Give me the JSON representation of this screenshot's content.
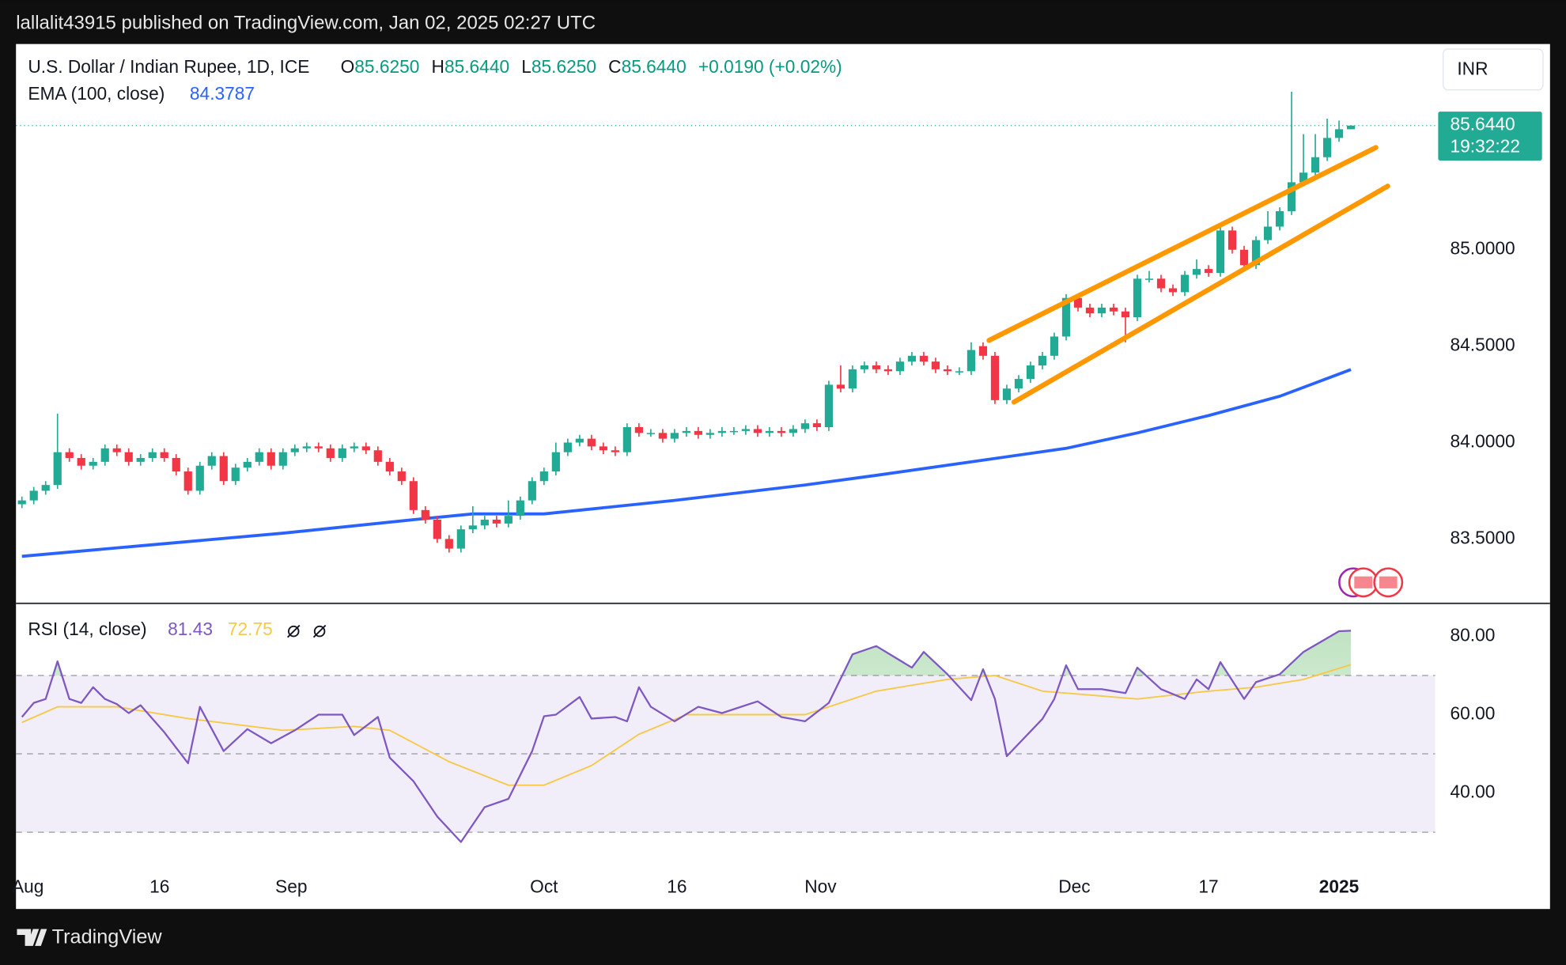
{
  "header": "lallalit43915 published on TradingView.com, Jan 02, 2025 02:27 UTC",
  "footer": "TradingView",
  "chart_data": [
    {
      "type": "candlestick",
      "title": "U.S. Dollar / Indian Rupee, 1D, ICE",
      "legend": [
        {
          "key": "O",
          "value": "85.6250"
        },
        {
          "key": "H",
          "value": "85.6440"
        },
        {
          "key": "L",
          "value": "85.6250"
        },
        {
          "key": "C",
          "value": "85.6440"
        }
      ],
      "change": "+0.0190 (+0.02%)",
      "currency": "INR",
      "up_color": "#22ab94",
      "down_color": "#f23645",
      "open": [
        83.68,
        83.7,
        83.75,
        83.78,
        83.95,
        83.92,
        83.88,
        83.9,
        83.97,
        83.95,
        83.9,
        83.92,
        83.95,
        83.92,
        83.85,
        83.75,
        83.88,
        83.93,
        83.8,
        83.87,
        83.9,
        83.95,
        83.88,
        83.95,
        83.97,
        83.98,
        83.97,
        83.92,
        83.97,
        83.98,
        83.96,
        83.9,
        83.85,
        83.8,
        83.65,
        83.6,
        83.5,
        83.45,
        83.55,
        83.57,
        83.6,
        83.58,
        83.62,
        83.7,
        83.8,
        83.85,
        83.95,
        84.0,
        84.02,
        83.98,
        83.96,
        83.95,
        84.08,
        84.05,
        84.05,
        84.02,
        84.05,
        84.06,
        84.04,
        84.05,
        84.06,
        84.06,
        84.07,
        84.05,
        84.06,
        84.05,
        84.07,
        84.1,
        84.08,
        84.3,
        84.28,
        84.38,
        84.4,
        84.38,
        84.37,
        84.42,
        84.45,
        84.42,
        84.38,
        84.37,
        84.37,
        84.5,
        84.45,
        84.22,
        84.28,
        84.33,
        84.4,
        84.45,
        84.55,
        84.75,
        84.7,
        84.67,
        84.7,
        84.68,
        84.65,
        84.85,
        84.85,
        84.8,
        84.78,
        84.87,
        84.9,
        84.88,
        85.1,
        85.0,
        84.92,
        85.05,
        85.12,
        85.2,
        85.35,
        85.4,
        85.48,
        85.58,
        85.625
      ],
      "high": [
        83.72,
        83.77,
        83.8,
        84.15,
        83.97,
        83.94,
        83.92,
        83.99,
        83.99,
        83.97,
        83.94,
        83.97,
        83.97,
        83.94,
        83.87,
        83.9,
        83.95,
        83.95,
        83.89,
        83.92,
        83.97,
        83.97,
        83.97,
        83.99,
        84.0,
        84.0,
        83.99,
        83.99,
        84.0,
        84.0,
        83.98,
        83.92,
        83.87,
        83.82,
        83.67,
        83.62,
        83.52,
        83.57,
        83.67,
        83.62,
        83.62,
        83.7,
        83.72,
        83.82,
        83.87,
        84.0,
        84.02,
        84.04,
        84.04,
        84.0,
        83.98,
        84.1,
        84.1,
        84.07,
        84.07,
        84.07,
        84.08,
        84.08,
        84.07,
        84.08,
        84.08,
        84.09,
        84.09,
        84.08,
        84.08,
        84.09,
        84.12,
        84.12,
        84.32,
        84.4,
        84.4,
        84.42,
        84.42,
        84.4,
        84.44,
        84.47,
        84.47,
        84.44,
        84.4,
        84.39,
        84.52,
        84.52,
        84.47,
        84.3,
        84.35,
        84.42,
        84.47,
        84.57,
        84.77,
        84.77,
        84.72,
        84.72,
        84.72,
        84.7,
        84.87,
        84.89,
        84.87,
        84.82,
        84.89,
        84.95,
        84.92,
        85.12,
        85.12,
        85.02,
        85.07,
        85.2,
        85.22,
        85.82,
        85.6,
        85.6,
        85.68,
        85.67,
        85.644
      ],
      "low": [
        83.66,
        83.68,
        83.73,
        83.76,
        83.9,
        83.86,
        83.86,
        83.88,
        83.93,
        83.88,
        83.88,
        83.9,
        83.9,
        83.83,
        83.73,
        83.73,
        83.86,
        83.78,
        83.78,
        83.85,
        83.88,
        83.86,
        83.86,
        83.93,
        83.95,
        83.95,
        83.9,
        83.9,
        83.95,
        83.94,
        83.88,
        83.83,
        83.78,
        83.63,
        83.58,
        83.48,
        83.43,
        83.43,
        83.53,
        83.55,
        83.56,
        83.56,
        83.6,
        83.68,
        83.78,
        83.83,
        83.93,
        83.98,
        83.96,
        83.94,
        83.93,
        83.93,
        84.03,
        84.03,
        84.0,
        84.0,
        84.03,
        84.02,
        84.02,
        84.03,
        84.04,
        84.04,
        84.03,
        84.03,
        84.03,
        84.03,
        84.05,
        84.06,
        84.06,
        84.26,
        84.26,
        84.36,
        84.36,
        84.35,
        84.35,
        84.4,
        84.4,
        84.36,
        84.35,
        84.35,
        84.35,
        84.43,
        84.2,
        84.2,
        84.26,
        84.31,
        84.38,
        84.43,
        84.53,
        84.68,
        84.65,
        84.65,
        84.66,
        84.52,
        84.63,
        84.83,
        84.78,
        84.76,
        84.76,
        84.85,
        84.86,
        84.86,
        84.98,
        84.9,
        84.9,
        85.03,
        85.1,
        85.18,
        85.33,
        85.38,
        85.46,
        85.56,
        85.625
      ],
      "close": [
        83.7,
        83.75,
        83.78,
        83.95,
        83.92,
        83.88,
        83.9,
        83.97,
        83.95,
        83.9,
        83.92,
        83.95,
        83.92,
        83.85,
        83.75,
        83.88,
        83.93,
        83.8,
        83.87,
        83.9,
        83.95,
        83.88,
        83.95,
        83.97,
        83.98,
        83.97,
        83.92,
        83.97,
        83.98,
        83.96,
        83.9,
        83.85,
        83.8,
        83.65,
        83.6,
        83.5,
        83.45,
        83.55,
        83.57,
        83.6,
        83.58,
        83.62,
        83.7,
        83.8,
        83.85,
        83.95,
        84.0,
        84.02,
        83.98,
        83.96,
        83.95,
        84.08,
        84.05,
        84.05,
        84.02,
        84.05,
        84.06,
        84.04,
        84.05,
        84.06,
        84.06,
        84.07,
        84.05,
        84.06,
        84.05,
        84.07,
        84.1,
        84.08,
        84.3,
        84.28,
        84.38,
        84.4,
        84.38,
        84.37,
        84.42,
        84.45,
        84.42,
        84.38,
        84.37,
        84.37,
        84.48,
        84.45,
        84.22,
        84.28,
        84.33,
        84.4,
        84.45,
        84.55,
        84.75,
        84.7,
        84.67,
        84.7,
        84.68,
        84.65,
        84.85,
        84.85,
        84.8,
        84.78,
        84.87,
        84.9,
        84.88,
        85.1,
        85.0,
        84.92,
        85.05,
        85.12,
        85.2,
        85.35,
        85.4,
        85.48,
        85.58,
        85.625,
        85.644
      ],
      "ema": {
        "name": "EMA (100, close)",
        "value_label": "84.3787",
        "color": "#2962ff",
        "x": [
          0,
          11,
          22,
          33,
          38,
          44,
          55,
          66,
          72,
          80,
          88,
          94,
          100,
          106,
          112
        ],
        "values": [
          83.41,
          83.47,
          83.53,
          83.6,
          83.63,
          83.63,
          83.7,
          83.78,
          83.83,
          83.9,
          83.97,
          84.05,
          84.14,
          84.24,
          84.3787
        ]
      },
      "channel_lines": [
        {
          "color": "#ff9800",
          "x": [
            81.5,
            114.1
          ],
          "values": [
            84.53,
            85.53
          ]
        },
        {
          "color": "#ff9800",
          "x": [
            83.6,
            115.1
          ],
          "values": [
            84.21,
            85.33
          ]
        }
      ],
      "last_price": {
        "value": 85.644,
        "label": "85.6440"
      },
      "countdown": "19:32:22",
      "ylim": [
        83.166,
        86.067
      ],
      "yticks": [
        {
          "value": 83.5,
          "label": "83.5000"
        },
        {
          "value": 84,
          "label": "84.0000"
        },
        {
          "value": 84.5,
          "label": "84.5000"
        },
        {
          "value": 85,
          "label": "85.0000"
        }
      ],
      "xlim": [
        -0.5,
        119.1
      ],
      "xticks": [
        {
          "value": 0.5,
          "label": "Aug"
        },
        {
          "value": 11.6,
          "label": "16"
        },
        {
          "value": 22.7,
          "label": "Sep"
        },
        {
          "value": 44,
          "label": "Oct"
        },
        {
          "value": 55.2,
          "label": "16"
        },
        {
          "value": 67.3,
          "label": "Nov"
        },
        {
          "value": 88.7,
          "label": "Dec"
        },
        {
          "value": 100,
          "label": "17"
        },
        {
          "value": 111,
          "label": "2025"
        }
      ]
    },
    {
      "type": "line",
      "title": "RSI (14, close)",
      "series": [
        {
          "color": "#7e57c2",
          "value_label": "81.43",
          "x": [
            0,
            1,
            2,
            3,
            4,
            5,
            6,
            7,
            8,
            9,
            10,
            12,
            14,
            15,
            17,
            19,
            21,
            23,
            25,
            27,
            28,
            30,
            31,
            33,
            35,
            37,
            39,
            41,
            43,
            44,
            45,
            47,
            48,
            50,
            51,
            52,
            53,
            55,
            57,
            59,
            62,
            64,
            66,
            68,
            70,
            72,
            75,
            76,
            78,
            80,
            81,
            82,
            83,
            86,
            87,
            88,
            89,
            91,
            93,
            94,
            96,
            98,
            99,
            100,
            101,
            103,
            104,
            106,
            108,
            111,
            112
          ],
          "values": [
            59.4,
            63,
            64,
            73.6,
            64,
            63,
            67,
            64,
            62.7,
            60.4,
            62.4,
            55.5,
            47.6,
            62,
            50.7,
            56.3,
            52.7,
            56,
            60,
            60,
            54.8,
            59.4,
            49,
            43,
            34,
            27.5,
            36.4,
            38.5,
            50.7,
            59.6,
            60,
            64.5,
            59,
            59.4,
            58.3,
            67,
            62,
            58.3,
            62,
            60.4,
            63.4,
            59.4,
            58.3,
            63,
            75.4,
            77.5,
            72,
            76,
            70.3,
            63.7,
            71.6,
            64,
            49.4,
            58.9,
            64,
            72.6,
            66.5,
            66.5,
            65.5,
            72,
            66.5,
            64,
            69,
            66.5,
            73.4,
            64,
            68.3,
            70.3,
            76,
            81.3,
            81.43
          ]
        },
        {
          "color": "#f7c948",
          "value_label": "72.75",
          "x": [
            0,
            3,
            8,
            14,
            22,
            28,
            31,
            36,
            41,
            44,
            48,
            52,
            56,
            62,
            66,
            72,
            78,
            82,
            86,
            90,
            94,
            100,
            104,
            108,
            112
          ],
          "values": [
            58,
            62,
            62,
            59,
            56,
            57,
            56,
            48,
            42,
            42,
            47,
            55,
            60,
            60,
            60,
            66,
            69,
            70,
            66,
            65,
            64,
            66,
            67,
            69,
            72.75
          ]
        }
      ],
      "levels": [
        70,
        50,
        30
      ],
      "ylim": [
        20.6,
        88.4
      ],
      "yticks": [
        {
          "value": 40,
          "label": "40.00"
        },
        {
          "value": 60,
          "label": "60.00"
        },
        {
          "value": 80,
          "label": "80.00"
        }
      ]
    }
  ]
}
